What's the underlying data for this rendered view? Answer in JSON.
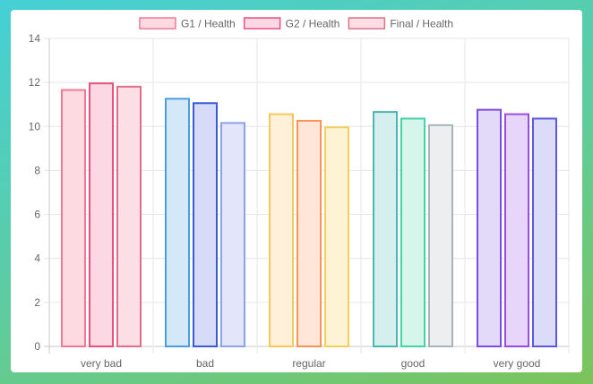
{
  "chart_data": {
    "type": "bar",
    "categories": [
      "very bad",
      "bad",
      "regular",
      "good",
      "very good"
    ],
    "series": [
      {
        "name": "G1 / Health",
        "values": [
          11.7,
          11.3,
          10.6,
          10.7,
          10.8
        ]
      },
      {
        "name": "G2 / Health",
        "values": [
          12.0,
          11.1,
          10.3,
          10.4,
          10.6
        ]
      },
      {
        "name": "Final / Health",
        "values": [
          11.85,
          10.2,
          10.0,
          10.1,
          10.4
        ]
      }
    ],
    "ylim": [
      0,
      14
    ],
    "yticks": [
      0,
      2,
      4,
      6,
      8,
      10,
      12,
      14
    ],
    "legend_position": "top-center",
    "grid": true,
    "bar_colors": [
      [
        {
          "fill": "#fdd9e2",
          "stroke": "#f07a94"
        },
        {
          "fill": "#fcd7e4",
          "stroke": "#e8507e"
        },
        {
          "fill": "#fbdfe5",
          "stroke": "#e0708a"
        }
      ],
      [
        {
          "fill": "#d4e8f7",
          "stroke": "#4a9ee0"
        },
        {
          "fill": "#d6dbf7",
          "stroke": "#3a5ad8"
        },
        {
          "fill": "#e2e6f8",
          "stroke": "#8aa2e8"
        }
      ],
      [
        {
          "fill": "#fff1d9",
          "stroke": "#f7c75a"
        },
        {
          "fill": "#ffe6d9",
          "stroke": "#f59458"
        },
        {
          "fill": "#fff3d6",
          "stroke": "#f4cf5a"
        }
      ],
      [
        {
          "fill": "#d5efee",
          "stroke": "#4bb8b0"
        },
        {
          "fill": "#d6f6ec",
          "stroke": "#44d4a2"
        },
        {
          "fill": "#eceeef",
          "stroke": "#a8b4b8"
        }
      ],
      [
        {
          "fill": "#e3daf9",
          "stroke": "#7a4ce0"
        },
        {
          "fill": "#e7d6f9",
          "stroke": "#9a4ce0"
        },
        {
          "fill": "#dcdcf8",
          "stroke": "#5a5ae0"
        }
      ]
    ],
    "legend_colors": [
      {
        "fill": "#fdd9e2",
        "stroke": "#f07a94"
      },
      {
        "fill": "#fcd7e4",
        "stroke": "#e8507e"
      },
      {
        "fill": "#fbdfe5",
        "stroke": "#e0708a"
      }
    ]
  }
}
